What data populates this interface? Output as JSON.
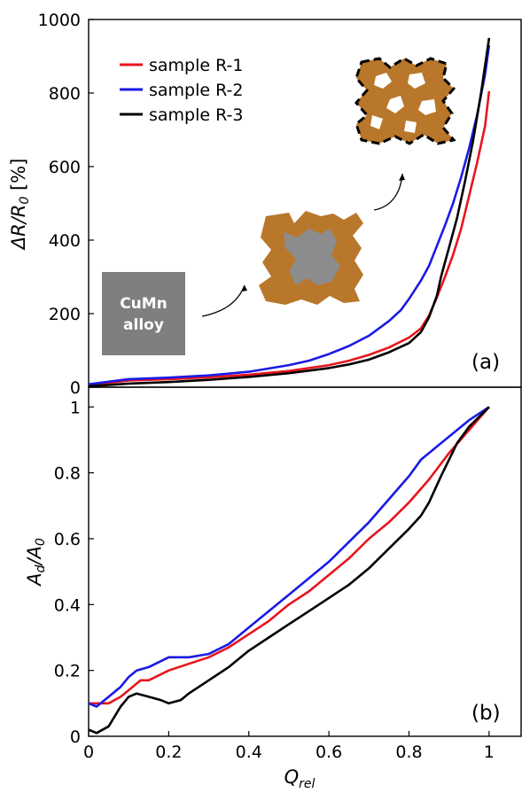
{
  "chart_data": [
    {
      "type": "line",
      "panel_label": "(a)",
      "ylabel": {
        "main": "ΔR/R",
        "sub": "0",
        "unit": " [%]"
      },
      "ylim": [
        0,
        1000
      ],
      "xlim": [
        0,
        1.08
      ],
      "yticks": [
        0,
        200,
        400,
        600,
        800,
        1000
      ],
      "legend": {
        "placement": "top-left"
      },
      "inset_label": [
        "CuMn",
        "alloy"
      ],
      "colors": {
        "alloy_box": "#7f7f7f",
        "shell": "#b8772a",
        "core": "#8c8c8c"
      },
      "series": [
        {
          "name": "sample R-1",
          "color": "#e8141c",
          "points": [
            [
              0,
              5
            ],
            [
              0.05,
              12
            ],
            [
              0.1,
              18
            ],
            [
              0.2,
              22
            ],
            [
              0.3,
              27
            ],
            [
              0.4,
              34
            ],
            [
              0.5,
              44
            ],
            [
              0.6,
              60
            ],
            [
              0.65,
              72
            ],
            [
              0.7,
              88
            ],
            [
              0.75,
              108
            ],
            [
              0.8,
              135
            ],
            [
              0.83,
              160
            ],
            [
              0.85,
              195
            ],
            [
              0.87,
              245
            ],
            [
              0.89,
              300
            ],
            [
              0.91,
              360
            ],
            [
              0.93,
              430
            ],
            [
              0.95,
              520
            ],
            [
              0.97,
              610
            ],
            [
              0.99,
              710
            ],
            [
              1.0,
              805
            ]
          ]
        },
        {
          "name": "sample R-2",
          "color": "#1a1ae6",
          "points": [
            [
              0,
              8
            ],
            [
              0.05,
              15
            ],
            [
              0.1,
              22
            ],
            [
              0.2,
              26
            ],
            [
              0.3,
              32
            ],
            [
              0.4,
              42
            ],
            [
              0.5,
              60
            ],
            [
              0.55,
              72
            ],
            [
              0.6,
              90
            ],
            [
              0.65,
              112
            ],
            [
              0.7,
              140
            ],
            [
              0.75,
              180
            ],
            [
              0.78,
              210
            ],
            [
              0.8,
              240
            ],
            [
              0.83,
              290
            ],
            [
              0.85,
              330
            ],
            [
              0.87,
              385
            ],
            [
              0.89,
              440
            ],
            [
              0.91,
              500
            ],
            [
              0.93,
              570
            ],
            [
              0.95,
              650
            ],
            [
              0.97,
              740
            ],
            [
              0.99,
              850
            ],
            [
              1.0,
              930
            ]
          ]
        },
        {
          "name": "sample R-3",
          "color": "#000000",
          "points": [
            [
              0,
              3
            ],
            [
              0.05,
              6
            ],
            [
              0.1,
              10
            ],
            [
              0.2,
              14
            ],
            [
              0.3,
              20
            ],
            [
              0.4,
              28
            ],
            [
              0.5,
              38
            ],
            [
              0.6,
              52
            ],
            [
              0.65,
              62
            ],
            [
              0.7,
              75
            ],
            [
              0.75,
              95
            ],
            [
              0.8,
              120
            ],
            [
              0.83,
              150
            ],
            [
              0.85,
              190
            ],
            [
              0.87,
              250
            ],
            [
              0.88,
              300
            ],
            [
              0.9,
              380
            ],
            [
              0.92,
              460
            ],
            [
              0.94,
              560
            ],
            [
              0.96,
              670
            ],
            [
              0.98,
              800
            ],
            [
              1.0,
              950
            ]
          ]
        }
      ]
    },
    {
      "type": "line",
      "panel_label": "(b)",
      "xlabel": {
        "main": "Q",
        "sub": "rel"
      },
      "ylabel": {
        "main": "A",
        "sub1": "d",
        "mid": "/A",
        "sub2": "0"
      },
      "ylim": [
        0,
        1.06
      ],
      "xlim": [
        0,
        1.08
      ],
      "yticks": [
        0,
        0.2,
        0.4,
        0.6,
        0.8,
        1
      ],
      "xticks": [
        0,
        0.2,
        0.4,
        0.6,
        0.8,
        1
      ],
      "series": [
        {
          "name": "sample R-1",
          "color": "#e8141c",
          "points": [
            [
              0,
              0.1
            ],
            [
              0.02,
              0.1
            ],
            [
              0.05,
              0.1
            ],
            [
              0.08,
              0.12
            ],
            [
              0.1,
              0.14
            ],
            [
              0.13,
              0.17
            ],
            [
              0.15,
              0.17
            ],
            [
              0.2,
              0.2
            ],
            [
              0.25,
              0.22
            ],
            [
              0.3,
              0.24
            ],
            [
              0.35,
              0.27
            ],
            [
              0.4,
              0.31
            ],
            [
              0.45,
              0.35
            ],
            [
              0.5,
              0.4
            ],
            [
              0.55,
              0.44
            ],
            [
              0.6,
              0.49
            ],
            [
              0.65,
              0.54
            ],
            [
              0.7,
              0.6
            ],
            [
              0.75,
              0.65
            ],
            [
              0.8,
              0.71
            ],
            [
              0.85,
              0.78
            ],
            [
              0.9,
              0.86
            ],
            [
              0.95,
              0.93
            ],
            [
              1.0,
              1.0
            ]
          ]
        },
        {
          "name": "sample R-2",
          "color": "#1a1ae6",
          "points": [
            [
              0,
              0.1
            ],
            [
              0.02,
              0.09
            ],
            [
              0.05,
              0.12
            ],
            [
              0.08,
              0.15
            ],
            [
              0.1,
              0.18
            ],
            [
              0.12,
              0.2
            ],
            [
              0.15,
              0.21
            ],
            [
              0.2,
              0.24
            ],
            [
              0.25,
              0.24
            ],
            [
              0.3,
              0.25
            ],
            [
              0.35,
              0.28
            ],
            [
              0.4,
              0.33
            ],
            [
              0.45,
              0.38
            ],
            [
              0.5,
              0.43
            ],
            [
              0.55,
              0.48
            ],
            [
              0.6,
              0.53
            ],
            [
              0.65,
              0.59
            ],
            [
              0.7,
              0.65
            ],
            [
              0.75,
              0.72
            ],
            [
              0.8,
              0.79
            ],
            [
              0.83,
              0.84
            ],
            [
              0.87,
              0.88
            ],
            [
              0.9,
              0.91
            ],
            [
              0.95,
              0.96
            ],
            [
              1.0,
              1.0
            ]
          ]
        },
        {
          "name": "sample R-3",
          "color": "#000000",
          "points": [
            [
              0,
              0.02
            ],
            [
              0.02,
              0.01
            ],
            [
              0.05,
              0.03
            ],
            [
              0.08,
              0.09
            ],
            [
              0.1,
              0.12
            ],
            [
              0.12,
              0.13
            ],
            [
              0.15,
              0.12
            ],
            [
              0.18,
              0.11
            ],
            [
              0.2,
              0.1
            ],
            [
              0.23,
              0.11
            ],
            [
              0.25,
              0.13
            ],
            [
              0.3,
              0.17
            ],
            [
              0.35,
              0.21
            ],
            [
              0.4,
              0.26
            ],
            [
              0.45,
              0.3
            ],
            [
              0.5,
              0.34
            ],
            [
              0.55,
              0.38
            ],
            [
              0.6,
              0.42
            ],
            [
              0.65,
              0.46
            ],
            [
              0.7,
              0.51
            ],
            [
              0.75,
              0.57
            ],
            [
              0.8,
              0.63
            ],
            [
              0.83,
              0.67
            ],
            [
              0.85,
              0.71
            ],
            [
              0.88,
              0.79
            ],
            [
              0.9,
              0.84
            ],
            [
              0.92,
              0.89
            ],
            [
              0.95,
              0.94
            ],
            [
              1.0,
              1.0
            ]
          ]
        }
      ]
    }
  ]
}
